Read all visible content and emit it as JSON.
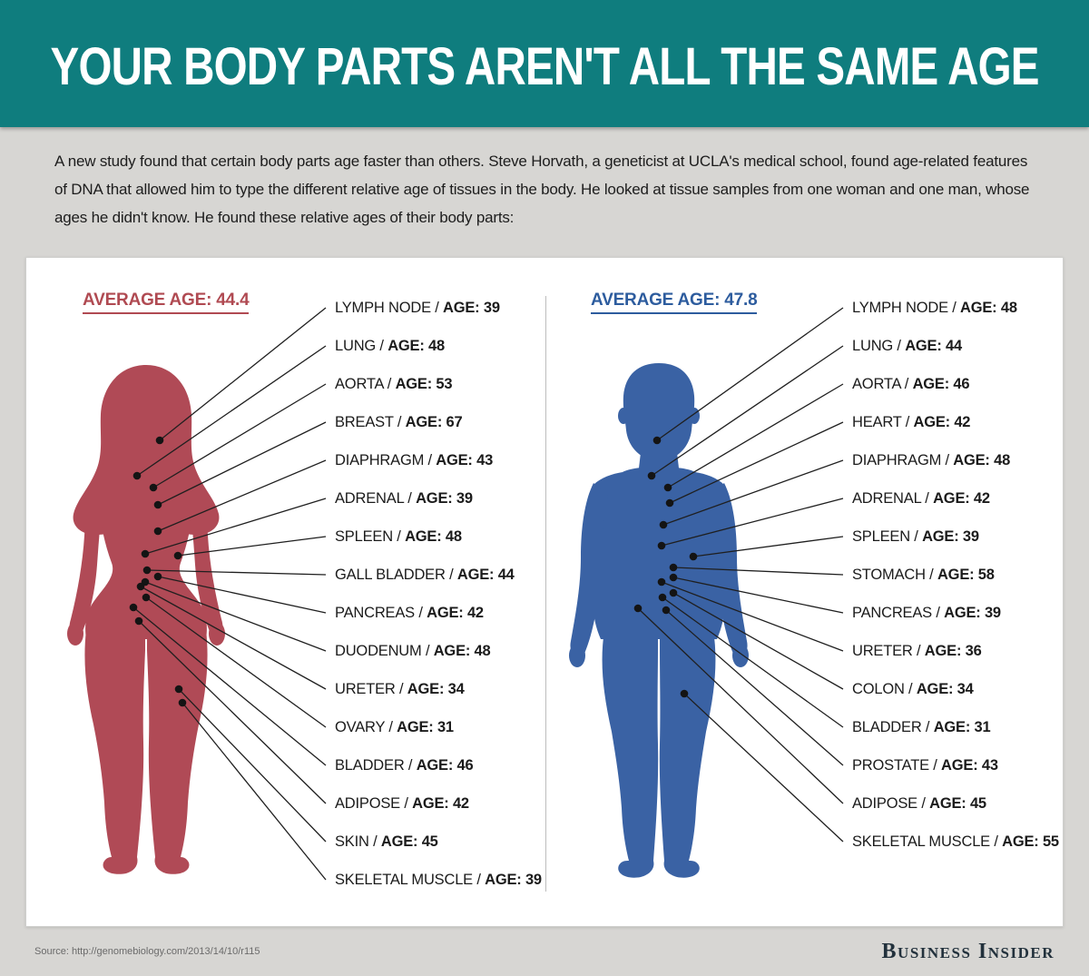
{
  "header": {
    "title": "YOUR BODY PARTS AREN'T ALL THE SAME AGE"
  },
  "intro": {
    "text": "A new study found that certain body parts age faster than others.  Steve Horvath, a geneticist at UCLA's medical school, found age-related features of DNA that allowed him to type the different relative age of tissues in the body. He looked at tissue samples from one woman and one man, whose ages he didn't know. He found these relative ages of their body parts:"
  },
  "label_separator": "/",
  "panels": [
    {
      "id": "female",
      "average_label": "AVERAGE AGE: 44.4",
      "accent": "#b04a52",
      "silhouette_color": "#b04a56",
      "items": [
        {
          "organ": "LYMPH NODE",
          "age_text": "AGE: 39"
        },
        {
          "organ": "LUNG",
          "age_text": "AGE: 48"
        },
        {
          "organ": "AORTA",
          "age_text": "AGE: 53"
        },
        {
          "organ": "BREAST",
          "age_text": "AGE: 67"
        },
        {
          "organ": "DIAPHRAGM",
          "age_text": "AGE: 43"
        },
        {
          "organ": "ADRENAL",
          "age_text": "AGE: 39"
        },
        {
          "organ": "SPLEEN",
          "age_text": "AGE: 48"
        },
        {
          "organ": "GALL BLADDER",
          "age_text": "AGE: 44"
        },
        {
          "organ": "PANCREAS",
          "age_text": "AGE: 42"
        },
        {
          "organ": "DUODENUM",
          "age_text": "AGE: 48"
        },
        {
          "organ": "URETER",
          "age_text": "AGE: 34"
        },
        {
          "organ": "OVARY",
          "age_text": "AGE: 31"
        },
        {
          "organ": "BLADDER",
          "age_text": "AGE: 46"
        },
        {
          "organ": "ADIPOSE",
          "age_text": "AGE: 42"
        },
        {
          "organ": "SKIN",
          "age_text": "AGE: 45"
        },
        {
          "organ": "SKELETAL MUSCLE",
          "age_text": "AGE: 39"
        }
      ]
    },
    {
      "id": "male",
      "average_label": "AVERAGE AGE: 47.8",
      "accent": "#2d5c9e",
      "silhouette_color": "#3a62a4",
      "items": [
        {
          "organ": "LYMPH NODE",
          "age_text": "AGE: 48"
        },
        {
          "organ": "LUNG",
          "age_text": "AGE: 44"
        },
        {
          "organ": "AORTA",
          "age_text": "AGE: 46"
        },
        {
          "organ": "HEART",
          "age_text": "AGE: 42"
        },
        {
          "organ": "DIAPHRAGM",
          "age_text": "AGE: 48"
        },
        {
          "organ": "ADRENAL",
          "age_text": "AGE: 42"
        },
        {
          "organ": "SPLEEN",
          "age_text": "AGE: 39"
        },
        {
          "organ": "STOMACH",
          "age_text": "AGE: 58"
        },
        {
          "organ": "PANCREAS",
          "age_text": "AGE: 39"
        },
        {
          "organ": "URETER",
          "age_text": "AGE: 36"
        },
        {
          "organ": "COLON",
          "age_text": "AGE: 34"
        },
        {
          "organ": "BLADDER",
          "age_text": "AGE: 31"
        },
        {
          "organ": "PROSTATE",
          "age_text": "AGE: 43"
        },
        {
          "organ": "ADIPOSE",
          "age_text": "AGE: 45"
        },
        {
          "organ": "SKELETAL MUSCLE",
          "age_text": "AGE: 55"
        }
      ]
    }
  ],
  "footer": {
    "source": "Source: http://genomebiology.com/2013/14/10/r115",
    "brand": "Business Insider"
  }
}
